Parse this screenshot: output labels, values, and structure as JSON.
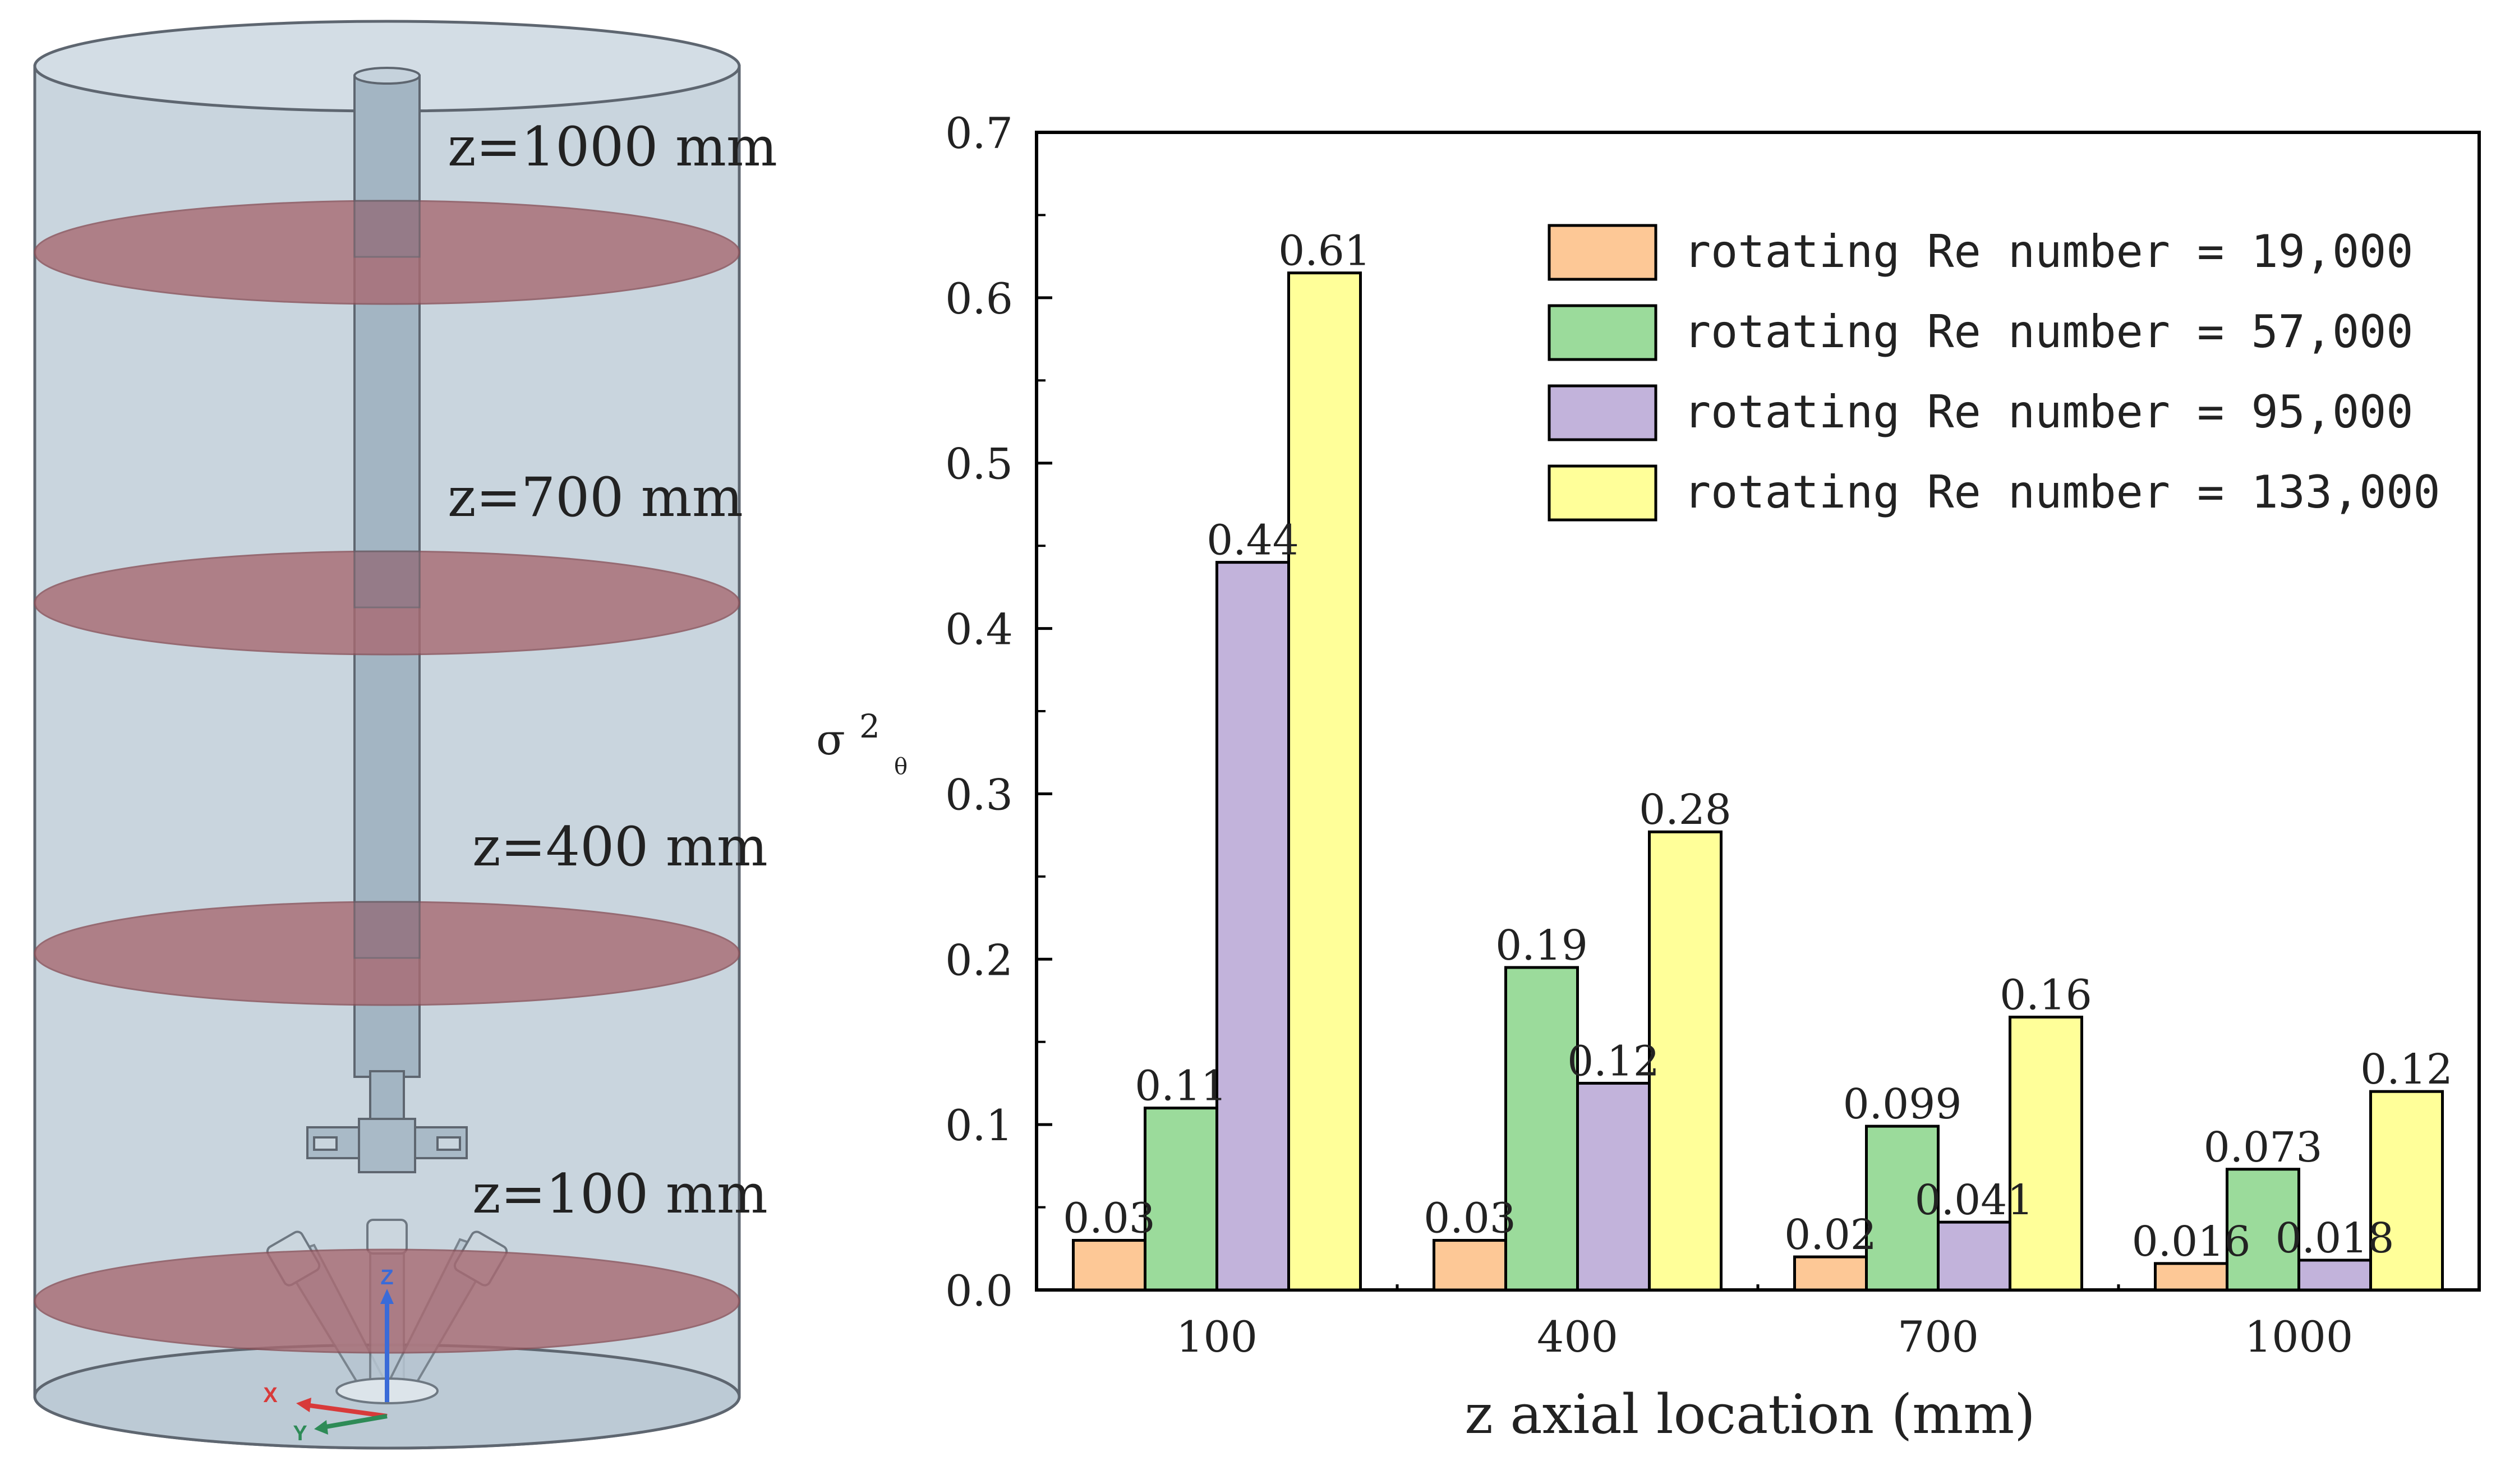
{
  "colors": {
    "series": [
      "#FDC896",
      "#9BDB9B",
      "#C2B3DB",
      "#FFFF99"
    ],
    "tank_fill": "#C9D5DE",
    "tank_stroke": "#5E6670",
    "plane_fill": "#A86A72",
    "shaft_fill": "#A3B5C3",
    "axis": "#000000"
  },
  "diagram": {
    "plane_labels": [
      "z=1000 mm",
      "z=700 mm",
      "z=400 mm",
      "z=100 mm"
    ],
    "axis_labels": {
      "x": "X",
      "y": "Y",
      "z": "Z"
    }
  },
  "chart_data": {
    "type": "bar",
    "title": "",
    "xlabel": "z axial location (mm)",
    "ylabel_main": "σ",
    "ylabel_sup": "2",
    "ylabel_sub": "θ",
    "categories": [
      "100",
      "400",
      "700",
      "1000"
    ],
    "ylim": [
      0.0,
      0.7
    ],
    "yticks": [
      "0.0",
      "0.1",
      "0.2",
      "0.3",
      "0.4",
      "0.5",
      "0.6",
      "0.7"
    ],
    "legend_position": "top-right",
    "series": [
      {
        "name": "rotating Re number = 19,000",
        "values": [
          0.03,
          0.03,
          0.02,
          0.016
        ],
        "labels": [
          "0.03",
          "0.03",
          "0.02",
          "0.016"
        ]
      },
      {
        "name": "rotating Re number = 57,000",
        "values": [
          0.11,
          0.195,
          0.099,
          0.073
        ],
        "labels": [
          "0.11",
          "0.19",
          "0.099",
          "0.073"
        ]
      },
      {
        "name": "rotating Re number = 95,000",
        "values": [
          0.44,
          0.125,
          0.041,
          0.018
        ],
        "labels": [
          "0.44",
          "0.12",
          "0.041",
          "0.018"
        ]
      },
      {
        "name": "rotating Re number = 133,000",
        "values": [
          0.615,
          0.277,
          0.165,
          0.12
        ],
        "labels": [
          "0.61",
          "0.28",
          "0.16",
          "0.12"
        ]
      }
    ]
  }
}
